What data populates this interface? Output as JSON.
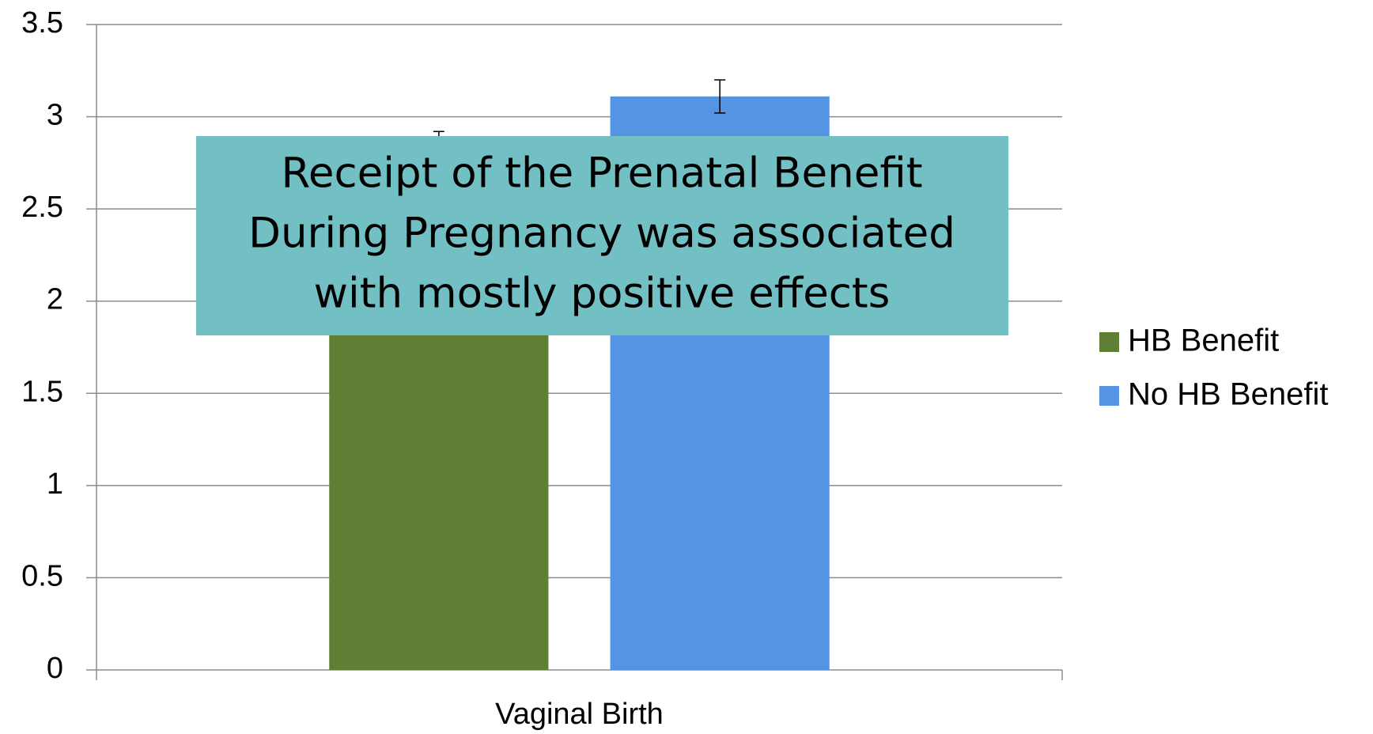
{
  "chart_data": {
    "type": "bar",
    "categories": [
      "Vaginal Birth"
    ],
    "series": [
      {
        "name": "HB Benefit",
        "color": "#5f7f34",
        "values": [
          2.85
        ],
        "errors": [
          0.07
        ]
      },
      {
        "name": "No HB Benefit",
        "color": "#5594e2",
        "values": [
          3.11
        ],
        "errors": [
          0.09
        ]
      }
    ],
    "ylim": [
      0,
      3.5
    ],
    "yticks": [
      0,
      0.5,
      1,
      1.5,
      2,
      2.5,
      3,
      3.5
    ],
    "grid": true,
    "legend": "right",
    "annotation": [
      "Receipt of the Prenatal Benefit",
      "During Pregnancy was associated",
      "with mostly positive effects"
    ]
  }
}
